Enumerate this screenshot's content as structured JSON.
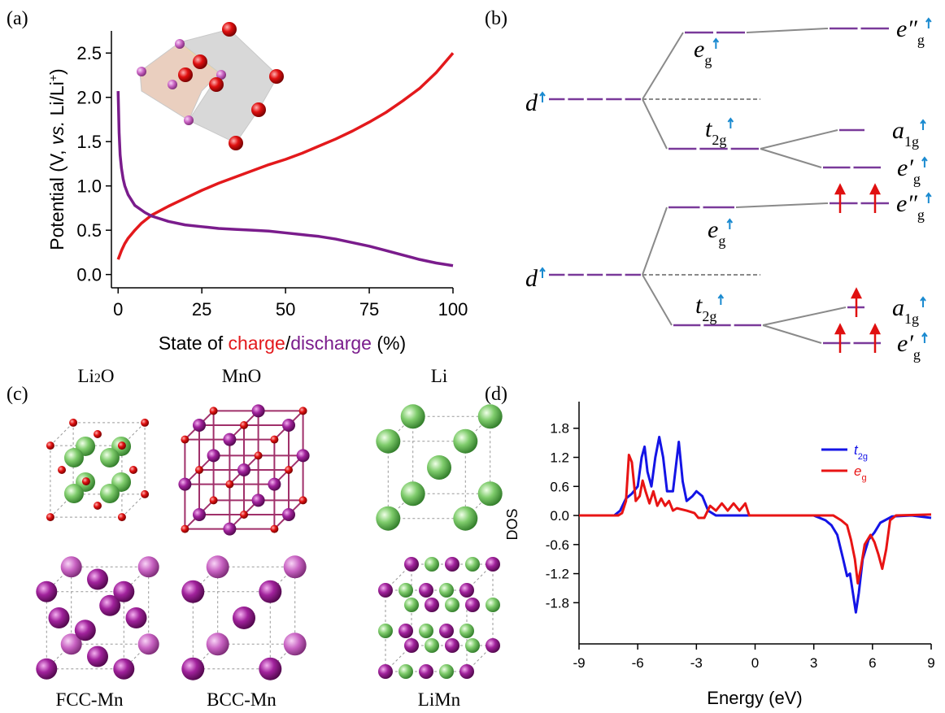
{
  "panel_labels": [
    "(a)",
    "(b)",
    "(c)",
    "(d)"
  ],
  "chart_data": [
    {
      "type": "line",
      "y_label_parts": [
        "Potential (V, ",
        "vs.",
        " Li/Li",
        "+",
        ")"
      ],
      "x_label_parts": [
        "State of ",
        "charge",
        "/",
        "discharge",
        " (%)"
      ],
      "xlim": [
        -2,
        100
      ],
      "ylim": [
        -0.15,
        2.75
      ],
      "xticks": [
        0,
        25,
        50,
        75,
        100
      ],
      "yticks": [
        {
          "value": 0,
          "label": "0.0"
        },
        0.5,
        {
          "value": 1,
          "label": "1.0"
        },
        1.5,
        {
          "value": 2,
          "label": "2.0"
        },
        2.5
      ],
      "series": [
        {
          "color": "#e3191c",
          "x": [
            0,
            1,
            2,
            3,
            5,
            7,
            10,
            15,
            20,
            25,
            30,
            35,
            40,
            45,
            50,
            55,
            60,
            65,
            70,
            75,
            80,
            85,
            90,
            95,
            100
          ],
          "values": [
            0.17,
            0.27,
            0.35,
            0.41,
            0.5,
            0.58,
            0.67,
            0.77,
            0.86,
            0.95,
            1.03,
            1.1,
            1.17,
            1.24,
            1.3,
            1.37,
            1.45,
            1.53,
            1.62,
            1.72,
            1.83,
            1.96,
            2.1,
            2.28,
            2.5
          ]
        },
        {
          "color": "#7a1c8c",
          "x": [
            0,
            0.3,
            0.6,
            1,
            1.5,
            2,
            3,
            5,
            8,
            10,
            15,
            20,
            25,
            30,
            35,
            40,
            45,
            50,
            55,
            60,
            65,
            70,
            75,
            80,
            85,
            90,
            95,
            100
          ],
          "values": [
            2.07,
            1.6,
            1.35,
            1.2,
            1.08,
            1.0,
            0.9,
            0.78,
            0.7,
            0.66,
            0.6,
            0.56,
            0.54,
            0.52,
            0.51,
            0.5,
            0.49,
            0.47,
            0.45,
            0.43,
            0.4,
            0.36,
            0.32,
            0.27,
            0.22,
            0.17,
            0.13,
            0.1
          ]
        }
      ]
    },
    {
      "type": "line",
      "x_label": "Energy (eV)",
      "y_label": "DOS",
      "xlim": [
        -9,
        9
      ],
      "ylim": [
        -2.65,
        2.35
      ],
      "xticks": [
        -9,
        -6,
        -3,
        0,
        3,
        6,
        9
      ],
      "yticks": [
        -1.8,
        -1.2,
        -0.6,
        {
          "value": 0,
          "label": "0.0"
        },
        0.6,
        1.2,
        1.8
      ],
      "legend": "upper right",
      "series": [
        {
          "name": "t",
          "name_sub": "2g",
          "color": "#1414e6",
          "x": [
            -9,
            -7.2,
            -6.9,
            -6.6,
            -6.3,
            -6.0,
            -5.8,
            -5.65,
            -5.5,
            -5.3,
            -5.1,
            -4.9,
            -4.7,
            -4.5,
            -4.2,
            -3.9,
            -3.7,
            -3.5,
            -3.2,
            -3.0,
            -2.7,
            -2.4,
            -2.0,
            0,
            3,
            3.3,
            3.6,
            3.9,
            4.2,
            4.5,
            4.7,
            4.85,
            5.0,
            5.15,
            5.3,
            5.5,
            5.8,
            6.1,
            6.4,
            7,
            8,
            9
          ],
          "values": [
            0,
            0,
            0.1,
            0.35,
            0.45,
            0.6,
            1.2,
            1.42,
            0.9,
            0.6,
            1.2,
            1.62,
            1.2,
            0.5,
            0.5,
            1.52,
            0.7,
            0.3,
            0.4,
            0.5,
            0.4,
            0.1,
            0,
            0,
            0,
            -0.05,
            -0.1,
            -0.2,
            -0.4,
            -0.9,
            -1.25,
            -1.2,
            -1.6,
            -2.0,
            -1.6,
            -0.9,
            -0.5,
            -0.35,
            -0.15,
            -0.02,
            0,
            -0.05
          ]
        },
        {
          "name": "e",
          "name_sub": "g",
          "color": "#e81414",
          "x": [
            -9,
            -7,
            -6.8,
            -6.6,
            -6.45,
            -6.3,
            -6.1,
            -5.9,
            -5.75,
            -5.6,
            -5.4,
            -5.2,
            -5.0,
            -4.8,
            -4.6,
            -4.4,
            -4.2,
            -4,
            -3.5,
            -3.1,
            -2.9,
            -2.6,
            -2.3,
            -2.0,
            -1.7,
            -1.4,
            -1.1,
            -0.8,
            -0.5,
            -0.3,
            0,
            3,
            4,
            4.4,
            4.7,
            4.9,
            5.1,
            5.25,
            5.4,
            5.6,
            5.9,
            6.1,
            6.3,
            6.5,
            6.7,
            6.9,
            7.2,
            9
          ],
          "values": [
            0,
            0,
            0.05,
            0.3,
            1.25,
            1.1,
            0.3,
            0.4,
            0.72,
            0.5,
            0.25,
            0.5,
            0.2,
            0.35,
            0.2,
            0.3,
            0.1,
            0.15,
            0.1,
            0.05,
            -0.05,
            -0.05,
            0.2,
            0.1,
            0.25,
            0.1,
            0.25,
            0.1,
            0.25,
            0,
            0,
            0,
            0,
            -0.1,
            -0.2,
            -0.5,
            -0.9,
            -1.4,
            -1.1,
            -0.6,
            -0.4,
            -0.55,
            -0.8,
            -1.1,
            -0.7,
            -0.1,
            0,
            0.02
          ]
        }
      ]
    }
  ],
  "panel_b": {
    "labels": [
      [
        "d"
      ],
      [
        "e",
        "g"
      ],
      [
        "e″",
        "g"
      ],
      [
        "t",
        "2g"
      ],
      [
        "a",
        "1g"
      ],
      [
        "e′",
        "g"
      ],
      [
        "d"
      ],
      [
        "e",
        "g"
      ],
      [
        "e″",
        "g"
      ],
      [
        "t",
        "2g"
      ],
      [
        "a",
        "1g"
      ],
      [
        "e′",
        "g"
      ]
    ]
  },
  "panel_c": {
    "labels": [
      [
        "Li",
        "2",
        "O"
      ],
      [
        "MnO"
      ],
      [
        "Li"
      ],
      [
        "FCC-Mn"
      ],
      [
        "BCC-Mn"
      ],
      [
        "LiMn"
      ]
    ]
  }
}
